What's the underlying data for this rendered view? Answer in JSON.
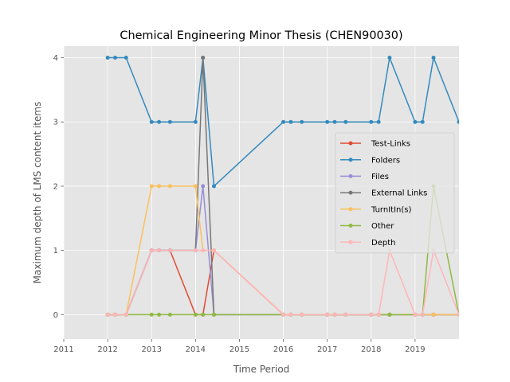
{
  "chart_data": {
    "type": "line",
    "title": "Chemical Engineering Minor Thesis (CHEN90030)",
    "xlabel": "Time Period",
    "ylabel": "Maximum depth of LMS content items",
    "xlim": [
      2011,
      2020
    ],
    "ylim": [
      -0.38,
      4.18
    ],
    "xticks": [
      "2011",
      "2012",
      "2013",
      "2014",
      "2015",
      "2016",
      "2017",
      "2018",
      "2019"
    ],
    "xtick_values": [
      2011,
      2012,
      2013,
      2014,
      2015,
      2016,
      2017,
      2018,
      2019
    ],
    "yticks": [
      "0",
      "1",
      "2",
      "3",
      "4"
    ],
    "ytick_values": [
      0,
      1,
      2,
      3,
      4
    ],
    "grid": true,
    "legend_position": "center-right",
    "x": [
      2012.0,
      2012.17,
      2012.42,
      2013.0,
      2013.17,
      2013.42,
      2014.0,
      2014.17,
      2014.42,
      2016.0,
      2016.17,
      2016.42,
      2017.0,
      2017.17,
      2017.42,
      2018.0,
      2018.17,
      2018.42,
      2019.0,
      2019.17,
      2019.42,
      2020.0
    ],
    "series": [
      {
        "name": "Test-Links",
        "color": "#e24a33",
        "values": [
          0,
          0,
          0,
          1,
          1,
          1,
          0,
          0,
          1,
          0,
          0,
          0,
          0,
          0,
          0,
          0,
          0,
          0,
          0,
          0,
          0,
          0
        ]
      },
      {
        "name": "Folders",
        "color": "#348abd",
        "values": [
          4,
          4,
          4,
          3,
          3,
          3,
          3,
          4,
          2,
          3,
          3,
          3,
          3,
          3,
          3,
          3,
          3,
          4,
          3,
          3,
          4,
          3
        ]
      },
      {
        "name": "Files",
        "color": "#988ed5",
        "values": [
          0,
          0,
          0,
          1,
          1,
          1,
          1,
          2,
          0,
          0,
          0,
          0,
          0,
          0,
          0,
          0,
          0,
          0,
          0,
          0,
          0,
          0
        ]
      },
      {
        "name": "External Links",
        "color": "#777777",
        "values": [
          0,
          0,
          0,
          1,
          1,
          1,
          1,
          4,
          0,
          0,
          0,
          0,
          0,
          0,
          0,
          0,
          0,
          0,
          0,
          0,
          0,
          0
        ]
      },
      {
        "name": "TurnItIn(s)",
        "color": "#fbc15e",
        "values": [
          0,
          0,
          0,
          2,
          2,
          2,
          2,
          1,
          1,
          0,
          0,
          0,
          0,
          0,
          0,
          0,
          0,
          0,
          0,
          0,
          0,
          0
        ]
      },
      {
        "name": "Other",
        "color": "#8eba42",
        "values": [
          0,
          0,
          0,
          0,
          0,
          0,
          0,
          0,
          0,
          0,
          0,
          0,
          0,
          0,
          0,
          0,
          0,
          0,
          0,
          0,
          2,
          0
        ]
      },
      {
        "name": "Depth",
        "color": "#ffb5b8",
        "values": [
          0,
          0,
          0,
          1,
          1,
          1,
          1,
          1,
          1,
          0,
          0,
          0,
          0,
          0,
          0,
          0,
          0,
          1,
          0,
          0,
          1,
          0
        ]
      }
    ]
  }
}
